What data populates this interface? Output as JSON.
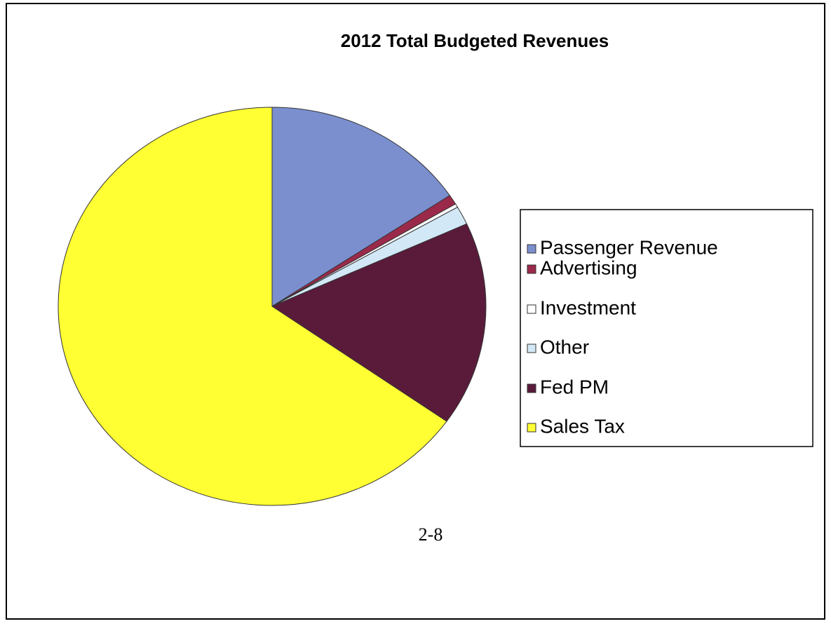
{
  "chart_data": {
    "type": "pie",
    "title": "2012 Total Budgeted Revenues",
    "categories": [
      "Passenger Revenue",
      "Advertising",
      "Investment",
      "Other",
      "Fed PM",
      "Sales Tax"
    ],
    "values": [
      15.6,
      0.8,
      0.3,
      1.5,
      16.6,
      65.2
    ],
    "colors": [
      "#7b8fcf",
      "#9b2a4a",
      "#ffffff",
      "#d2e8f6",
      "#5a1b3b",
      "#ffff33"
    ],
    "legend": "right"
  },
  "footer": "2-8"
}
